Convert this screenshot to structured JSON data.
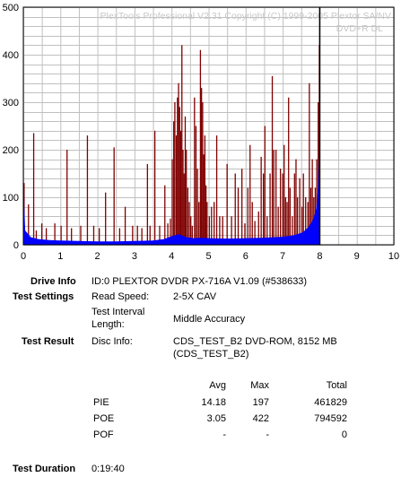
{
  "chart_data": {
    "type": "area",
    "watermark": "PlexTools Professional V2.31 Copyright (C) 1999-2005 Plextor SA/NV",
    "media": "DVD+R DL",
    "ylim": [
      0,
      500
    ],
    "xlim": [
      0,
      10
    ],
    "y_ticks": [
      "0",
      "100",
      "200",
      "300",
      "400",
      "500"
    ],
    "x_ticks": [
      "0",
      "1",
      "2",
      "3",
      "4",
      "5",
      "6",
      "7",
      "8",
      "9",
      "10"
    ],
    "colors": {
      "poe": "#800000",
      "pie": "#0000ff",
      "marker": "#000000",
      "grid": "#c0c0c0"
    },
    "series": [
      {
        "key": "poe",
        "points": [
          [
            0.02,
            130
          ],
          [
            0.14,
            85
          ],
          [
            0.28,
            235
          ],
          [
            0.35,
            30
          ],
          [
            0.5,
            45
          ],
          [
            0.62,
            35
          ],
          [
            0.85,
            45
          ],
          [
            1.02,
            40
          ],
          [
            1.18,
            200
          ],
          [
            1.3,
            35
          ],
          [
            1.55,
            40
          ],
          [
            1.73,
            230
          ],
          [
            1.9,
            40
          ],
          [
            2.05,
            35
          ],
          [
            2.22,
            110
          ],
          [
            2.45,
            205
          ],
          [
            2.6,
            35
          ],
          [
            2.75,
            80
          ],
          [
            2.95,
            40
          ],
          [
            3.08,
            40
          ],
          [
            3.2,
            35
          ],
          [
            3.35,
            170
          ],
          [
            3.42,
            40
          ],
          [
            3.55,
            240
          ],
          [
            3.68,
            40
          ],
          [
            3.82,
            125
          ],
          [
            3.9,
            45
          ],
          [
            3.97,
            55
          ],
          [
            4.02,
            180
          ],
          [
            4.06,
            260
          ],
          [
            4.09,
            300
          ],
          [
            4.13,
            230
          ],
          [
            4.16,
            310
          ],
          [
            4.19,
            340
          ],
          [
            4.22,
            290
          ],
          [
            4.25,
            240
          ],
          [
            4.28,
            420
          ],
          [
            4.31,
            200
          ],
          [
            4.34,
            150
          ],
          [
            4.37,
            270
          ],
          [
            4.4,
            200
          ],
          [
            4.44,
            120
          ],
          [
            4.48,
            90
          ],
          [
            4.52,
            60
          ],
          [
            4.56,
            40
          ],
          [
            4.62,
            310
          ],
          [
            4.66,
            250
          ],
          [
            4.7,
            160
          ],
          [
            4.74,
            90
          ],
          [
            4.78,
            410
          ],
          [
            4.81,
            330
          ],
          [
            4.84,
            300
          ],
          [
            4.87,
            190
          ],
          [
            4.9,
            230
          ],
          [
            4.93,
            125
          ],
          [
            4.96,
            90
          ],
          [
            5.02,
            60
          ],
          [
            5.08,
            80
          ],
          [
            5.15,
            90
          ],
          [
            5.22,
            230
          ],
          [
            5.3,
            60
          ],
          [
            5.38,
            60
          ],
          [
            5.5,
            170
          ],
          [
            5.62,
            60
          ],
          [
            5.72,
            150
          ],
          [
            5.8,
            120
          ],
          [
            5.9,
            160
          ],
          [
            5.98,
            45
          ],
          [
            6.06,
            120
          ],
          [
            6.12,
            210
          ],
          [
            6.18,
            90
          ],
          [
            6.25,
            50
          ],
          [
            6.35,
            70
          ],
          [
            6.42,
            185
          ],
          [
            6.48,
            150
          ],
          [
            6.52,
            250
          ],
          [
            6.58,
            60
          ],
          [
            6.66,
            150
          ],
          [
            6.72,
            355
          ],
          [
            6.76,
            200
          ],
          [
            6.82,
            200
          ],
          [
            6.88,
            80
          ],
          [
            6.94,
            160
          ],
          [
            7.0,
            150
          ],
          [
            7.04,
            210
          ],
          [
            7.08,
            100
          ],
          [
            7.12,
            90
          ],
          [
            7.16,
            310
          ],
          [
            7.2,
            120
          ],
          [
            7.26,
            60
          ],
          [
            7.32,
            150
          ],
          [
            7.36,
            180
          ],
          [
            7.4,
            100
          ],
          [
            7.46,
            140
          ],
          [
            7.52,
            80
          ],
          [
            7.56,
            150
          ],
          [
            7.62,
            100
          ],
          [
            7.68,
            90
          ],
          [
            7.72,
            340
          ],
          [
            7.76,
            120
          ],
          [
            7.8,
            180
          ],
          [
            7.84,
            100
          ],
          [
            7.88,
            120
          ],
          [
            7.92,
            180
          ],
          [
            7.96,
            300
          ],
          [
            7.99,
            420
          ]
        ]
      },
      {
        "key": "pie",
        "profile": [
          [
            0.0,
            130
          ],
          [
            0.05,
            30
          ],
          [
            0.2,
            16
          ],
          [
            0.4,
            12
          ],
          [
            0.7,
            10
          ],
          [
            1.0,
            9
          ],
          [
            1.5,
            8
          ],
          [
            2.0,
            7
          ],
          [
            2.5,
            7
          ],
          [
            3.0,
            8
          ],
          [
            3.5,
            9
          ],
          [
            3.8,
            12
          ],
          [
            4.0,
            18
          ],
          [
            4.2,
            22
          ],
          [
            4.4,
            16
          ],
          [
            4.6,
            14
          ],
          [
            4.8,
            15
          ],
          [
            5.0,
            14
          ],
          [
            5.5,
            13
          ],
          [
            6.0,
            14
          ],
          [
            6.5,
            15
          ],
          [
            7.0,
            17
          ],
          [
            7.3,
            20
          ],
          [
            7.5,
            25
          ],
          [
            7.6,
            30
          ],
          [
            7.7,
            38
          ],
          [
            7.8,
            50
          ],
          [
            7.85,
            60
          ],
          [
            7.9,
            75
          ],
          [
            7.93,
            95
          ],
          [
            7.96,
            130
          ],
          [
            7.98,
            180
          ],
          [
            8.0,
            200
          ]
        ]
      }
    ],
    "marker_x": 8.0
  },
  "info": {
    "drive_label": "Drive Info",
    "drive_value": "ID:0 PLEXTOR DVDR PX-716A V1.09 (#538633)",
    "settings_label": "Test Settings",
    "read_speed_label": "Read Speed:",
    "read_speed_value": "2-5X CAV",
    "interval_label_1": "Test Interval",
    "interval_label_2": "Length:",
    "interval_value": "Middle Accuracy",
    "result_label": "Test Result",
    "disc_info_label": "Disc Info:",
    "disc_info_value_1": "CDS_TEST_B2 DVD-ROM, 8152 MB",
    "disc_info_value_2": "(CDS_TEST_B2)",
    "duration_label": "Test Duration",
    "duration_value": "0:19:40"
  },
  "stats": {
    "headers": {
      "avg": "Avg",
      "max": "Max",
      "total": "Total"
    },
    "rows": [
      {
        "name": "PIE",
        "avg": "14.18",
        "max": "197",
        "total": "461829"
      },
      {
        "name": "POE",
        "avg": "3.05",
        "max": "422",
        "total": "794592"
      },
      {
        "name": "POF",
        "avg": "-",
        "max": "-",
        "total": "0"
      }
    ]
  }
}
